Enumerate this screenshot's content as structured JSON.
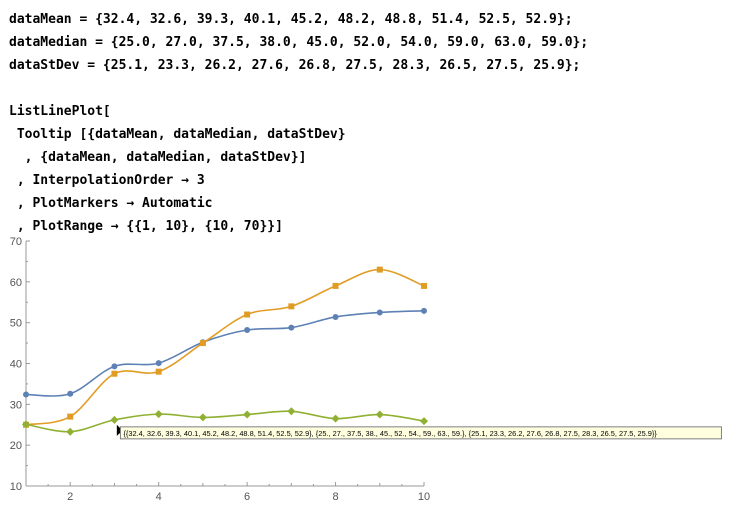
{
  "code": {
    "lines": [
      "dataMean = {32.4, 32.6, 39.3, 40.1, 45.2, 48.2, 48.8, 51.4, 52.5, 52.9};",
      "dataMedian = {25.0, 27.0, 37.5, 38.0, 45.0, 52.0, 54.0, 59.0, 63.0, 59.0};",
      "dataStDev = {25.1, 23.3, 26.2, 27.6, 26.8, 27.5, 28.3, 26.5, 27.5, 25.9};",
      "",
      "ListLinePlot[",
      " Tooltip [{dataMean, dataMedian, dataStDev}",
      "  , {dataMean, dataMedian, dataStDev}]",
      " , InterpolationOrder → 3",
      " , PlotMarkers → Automatic",
      " , PlotRange → {{1, 10}, {10, 70}}]"
    ]
  },
  "tooltip": {
    "text": "{{32.4, 32.6, 39.3, 40.1, 45.2, 48.2, 48.8, 51.4, 52.5, 52.9}, {25., 27., 37.5, 38., 45., 52., 54., 59., 63., 59.}, {25.1, 23.3, 26.2, 27.6, 26.8, 27.5, 28.3, 26.5, 27.5, 25.9}}"
  },
  "chart_data": {
    "type": "line",
    "x": [
      1,
      2,
      3,
      4,
      5,
      6,
      7,
      8,
      9,
      10
    ],
    "xlim": [
      1,
      10
    ],
    "ylim": [
      10,
      70
    ],
    "xticks": [
      2,
      4,
      6,
      8,
      10
    ],
    "yticks": [
      10,
      20,
      30,
      40,
      50,
      60,
      70
    ],
    "grid": false,
    "series": [
      {
        "values": [
          32.4,
          32.6,
          39.3,
          40.1,
          45.2,
          48.2,
          48.8,
          51.4,
          52.5,
          52.9
        ],
        "color": "#5E81B5",
        "marker": "circle"
      },
      {
        "values": [
          25.0,
          27.0,
          37.5,
          38.0,
          45.0,
          52.0,
          54.0,
          59.0,
          63.0,
          59.0
        ],
        "color": "#E19C24",
        "marker": "square"
      },
      {
        "values": [
          25.1,
          23.3,
          26.2,
          27.6,
          26.8,
          27.5,
          28.3,
          26.5,
          27.5,
          25.9
        ],
        "color": "#8FB032",
        "marker": "diamond"
      }
    ]
  }
}
